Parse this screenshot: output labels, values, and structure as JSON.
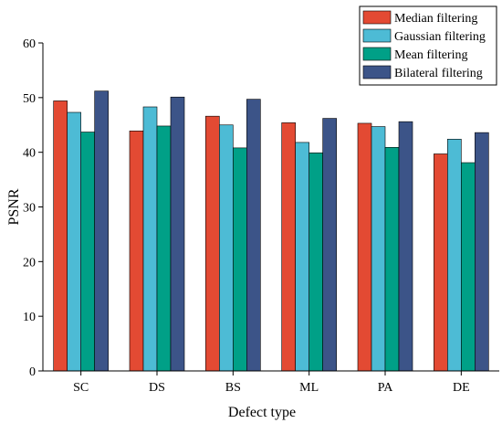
{
  "chart_data": {
    "type": "bar",
    "title": "",
    "xlabel": "Defect type",
    "ylabel": "PSNR",
    "ylim": [
      0,
      60
    ],
    "yticks": [
      0,
      10,
      20,
      30,
      40,
      50,
      60
    ],
    "categories": [
      "SC",
      "DS",
      "BS",
      "ML",
      "PA",
      "DE"
    ],
    "series": [
      {
        "name": "Median filtering",
        "color": "#e34a33",
        "values": [
          49.4,
          43.9,
          46.6,
          45.4,
          45.3,
          39.7
        ]
      },
      {
        "name": "Gaussian filtering",
        "color": "#4dbbd5",
        "values": [
          47.3,
          48.3,
          45.0,
          41.8,
          44.7,
          42.4
        ]
      },
      {
        "name": "Mean filtering",
        "color": "#00a087",
        "values": [
          43.7,
          44.8,
          40.8,
          39.9,
          40.9,
          38.1
        ]
      },
      {
        "name": "Bilateral filtering",
        "color": "#3c5488",
        "values": [
          51.2,
          50.1,
          49.7,
          46.2,
          45.6,
          43.6
        ]
      }
    ],
    "legend_position": "top-right",
    "grid": false
  }
}
